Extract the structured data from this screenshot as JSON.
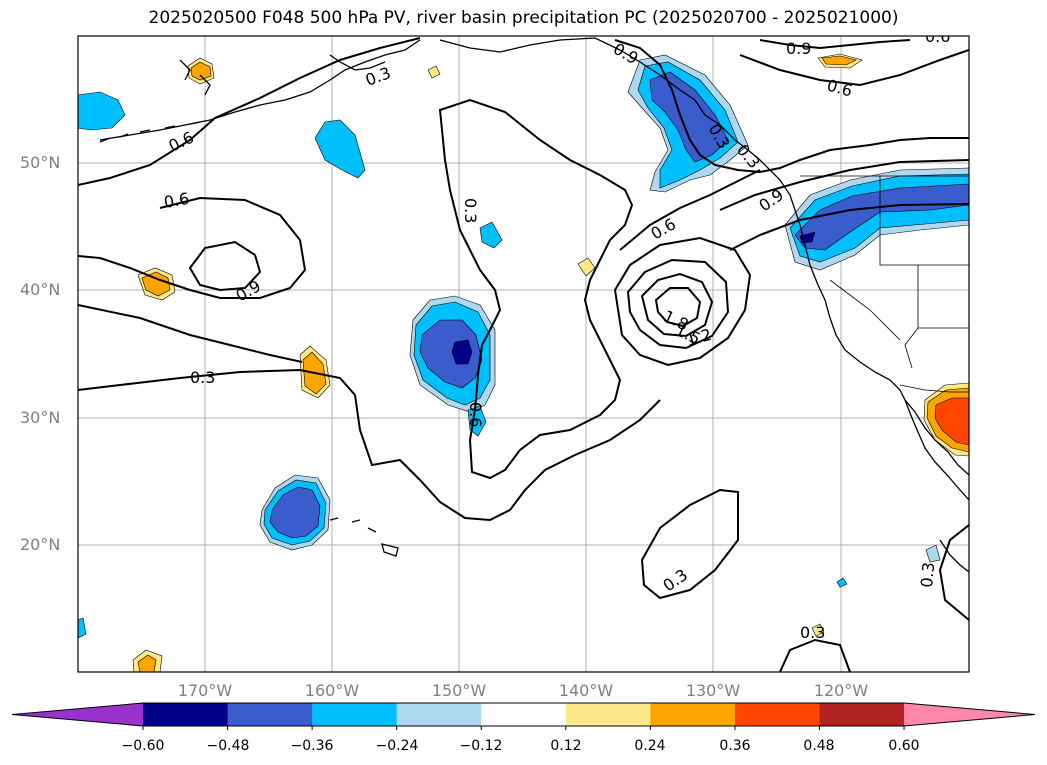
{
  "title": "2025020500 F048 500 hPa PV, river basin precipitation PC (2025020700 - 2025021000)",
  "lat_labels": [
    "50°N",
    "40°N",
    "30°N",
    "20°N"
  ],
  "lon_labels": [
    "170°W",
    "160°W",
    "150°W",
    "140°W",
    "130°W",
    "120°W"
  ],
  "contour_labels": [
    "0.3",
    "0.6",
    "0.9",
    "0.6",
    "0.9",
    "0.6",
    "0.3",
    "0.3",
    "1.8",
    "1.5",
    "1.2",
    "0.6",
    "0.9",
    "0.6",
    "0.6",
    "0.9",
    "0.3",
    "0.3",
    "0.3",
    "0.3",
    "0.3"
  ],
  "colorbar": {
    "ticks": [
      "−0.60",
      "−0.48",
      "−0.36",
      "−0.24",
      "−0.12",
      "0.12",
      "0.24",
      "0.36",
      "0.48",
      "0.60"
    ],
    "colors": [
      "#9932cc",
      "#00008b",
      "#3a5ccc",
      "#00bfff",
      "#add8f0",
      "#ffffff",
      "#ffe88a",
      "#ffa500",
      "#ff4500",
      "#b22222",
      "#ff88aa"
    ]
  }
}
